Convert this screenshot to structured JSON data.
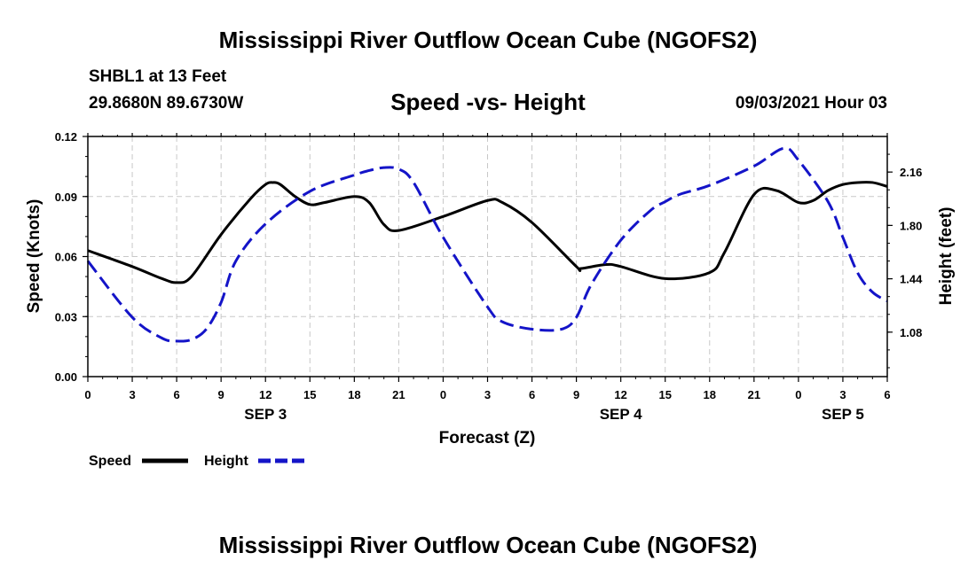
{
  "header": {
    "title_top": "Mississippi River Outflow Ocean Cube (NGOFS2)",
    "title_bottom": "Mississippi River Outflow Ocean Cube (NGOFS2)",
    "station": "SHBL1 at 13 Feet",
    "coords": "29.8680N  89.6730W",
    "subtitle": "Speed -vs- Height",
    "datetime": "09/03/2021 Hour 03"
  },
  "chart_data": {
    "type": "line",
    "title": "Speed -vs- Height",
    "xlabel": "Forecast (Z)",
    "ylabel_left": "Speed (Knots)",
    "ylabel_right": "Height (feet)",
    "x_range": [
      0,
      54
    ],
    "x_ticks": [
      0,
      3,
      6,
      9,
      12,
      15,
      18,
      21,
      24,
      27,
      30,
      33,
      36,
      39,
      42,
      45,
      48,
      51,
      54
    ],
    "x_tick_labels": [
      "0",
      "3",
      "6",
      "9",
      "12",
      "15",
      "18",
      "21",
      "0",
      "3",
      "6",
      "9",
      "12",
      "15",
      "18",
      "21",
      "0",
      "3",
      "6"
    ],
    "day_labels": [
      {
        "x": 12,
        "label": "SEP 3"
      },
      {
        "x": 36,
        "label": "SEP 4"
      },
      {
        "x": 51,
        "label": "SEP 5"
      }
    ],
    "ylim_left": [
      0,
      0.12
    ],
    "y_ticks_left": [
      0,
      0.03,
      0.06,
      0.09,
      0.12
    ],
    "y_tick_labels_left": [
      "0.00",
      "0.03",
      "0.06",
      "0.09",
      "0.12"
    ],
    "ylim_right": [
      0.78,
      2.4
    ],
    "y_ticks_right": [
      1.08,
      1.44,
      1.8,
      2.16
    ],
    "y_tick_labels_right": [
      "1.08",
      "1.44",
      "1.80",
      "2.16"
    ],
    "grid": true,
    "legend": {
      "placement": "bottom-left",
      "speed_label": "Speed",
      "height_label": "Height"
    },
    "series": [
      {
        "name": "Speed",
        "axis": "left",
        "color": "#000000",
        "style": "solid",
        "x": [
          0,
          3,
          5,
          6,
          7,
          9,
          11,
          12,
          12.5,
          13,
          14,
          15,
          16,
          18,
          19,
          20,
          21,
          24,
          27,
          28,
          30,
          33,
          33.3,
          35,
          36,
          39,
          42,
          43,
          45,
          46.5,
          48,
          49,
          50,
          51,
          52,
          53,
          54
        ],
        "values": [
          0.063,
          0.055,
          0.049,
          0.047,
          0.05,
          0.071,
          0.089,
          0.096,
          0.097,
          0.096,
          0.09,
          0.086,
          0.087,
          0.09,
          0.087,
          0.076,
          0.073,
          0.08,
          0.088,
          0.087,
          0.077,
          0.055,
          0.054,
          0.056,
          0.055,
          0.049,
          0.052,
          0.062,
          0.091,
          0.093,
          0.087,
          0.088,
          0.093,
          0.096,
          0.097,
          0.097,
          0.095
        ]
      },
      {
        "name": "Height",
        "axis": "right",
        "color": "#1414c8",
        "style": "dashed",
        "x": [
          0,
          3,
          5,
          6,
          7,
          8,
          9,
          10,
          12,
          15,
          18,
          19,
          20,
          21,
          22,
          24,
          27,
          28,
          30,
          32,
          33,
          34,
          36,
          38,
          39,
          40,
          42,
          45,
          47,
          48,
          50,
          51,
          52,
          53,
          54
        ],
        "values": [
          1.56,
          1.18,
          1.04,
          1.02,
          1.03,
          1.1,
          1.28,
          1.56,
          1.81,
          2.03,
          2.14,
          2.17,
          2.19,
          2.18,
          2.09,
          1.72,
          1.25,
          1.15,
          1.1,
          1.1,
          1.18,
          1.4,
          1.7,
          1.9,
          1.96,
          2.01,
          2.07,
          2.2,
          2.32,
          2.24,
          1.96,
          1.72,
          1.48,
          1.35,
          1.29
        ]
      }
    ]
  }
}
